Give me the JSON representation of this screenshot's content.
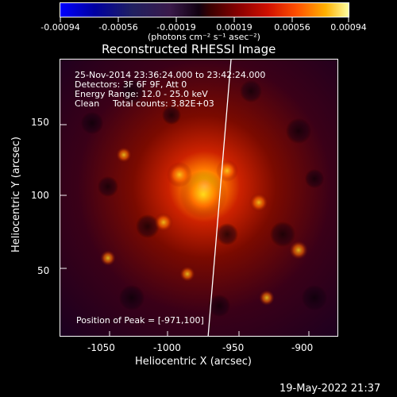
{
  "colorbar": {
    "tick_labels": [
      "-0.00094",
      "-0.00056",
      "-0.00019",
      "0.00019",
      "0.00056",
      "0.00094"
    ],
    "units_label": "(photons cm⁻² s⁻¹ asec⁻²)"
  },
  "plot": {
    "title": "Reconstructed RHESSI Image",
    "annotations": {
      "line1": "25-Nov-2014 23:36:24.000 to 23:42:24.000",
      "line2": "Detectors: 3F 6F 9F, Att 0",
      "line3": "Energy Range: 12.0 - 25.0 keV",
      "line4_left": "Clean",
      "line4_right": "Total counts: 3.82E+03",
      "peak": "Position of Peak = [-971,100]"
    },
    "x_axis": {
      "label": "Heliocentric X (arcsec)",
      "ticks": [
        "-1050",
        "-1000",
        "-950",
        "-900"
      ]
    },
    "y_axis": {
      "label": "Heliocentric Y (arcsec)",
      "ticks": [
        "50",
        "100",
        "150"
      ]
    }
  },
  "footer": {
    "timestamp": "19-May-2022 21:37"
  }
}
